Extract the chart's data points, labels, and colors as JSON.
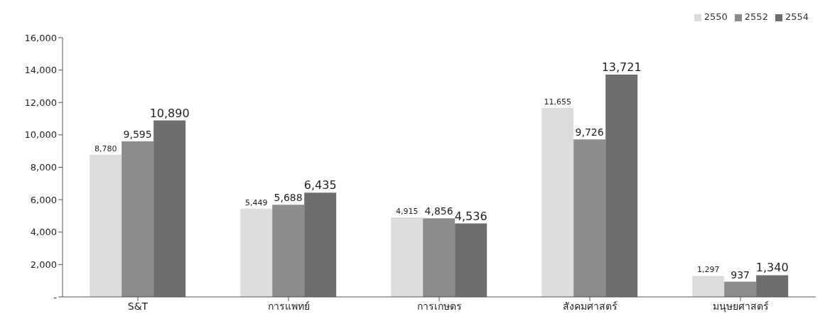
{
  "chart_data": {
    "type": "bar",
    "categories": [
      "S&T",
      "การแพทย์",
      "การเกษตร",
      "สังคมศาสตร์",
      "มนุษยศาสตร์"
    ],
    "series": [
      {
        "name": "2550",
        "color": "#dcdcdc",
        "values": [
          8780,
          5449,
          4915,
          11655,
          1297
        ],
        "value_labels": [
          "8,780",
          "5,449",
          "4,915",
          "11,655",
          "1,297"
        ]
      },
      {
        "name": "2552",
        "color": "#8c8c8c",
        "values": [
          9595,
          5688,
          4856,
          9726,
          937
        ],
        "value_labels": [
          "9,595",
          "5,688",
          "4,856",
          "9,726",
          "937"
        ]
      },
      {
        "name": "2554",
        "color": "#6e6e6e",
        "values": [
          10890,
          6435,
          4536,
          13721,
          1340
        ],
        "value_labels": [
          "10,890",
          "6,435",
          "4,536",
          "13,721",
          "1,340"
        ]
      }
    ],
    "ylim": [
      0,
      16000
    ],
    "yticks": [
      {
        "value": 0,
        "label": "-"
      },
      {
        "value": 2000,
        "label": "2,000"
      },
      {
        "value": 4000,
        "label": "4,000"
      },
      {
        "value": 6000,
        "label": "6,000"
      },
      {
        "value": 8000,
        "label": "8,000"
      },
      {
        "value": 10000,
        "label": "10,000"
      },
      {
        "value": 12000,
        "label": "12,000"
      },
      {
        "value": 14000,
        "label": "14,000"
      },
      {
        "value": 16000,
        "label": "16,000"
      }
    ],
    "grid": false,
    "legend": "top right"
  }
}
